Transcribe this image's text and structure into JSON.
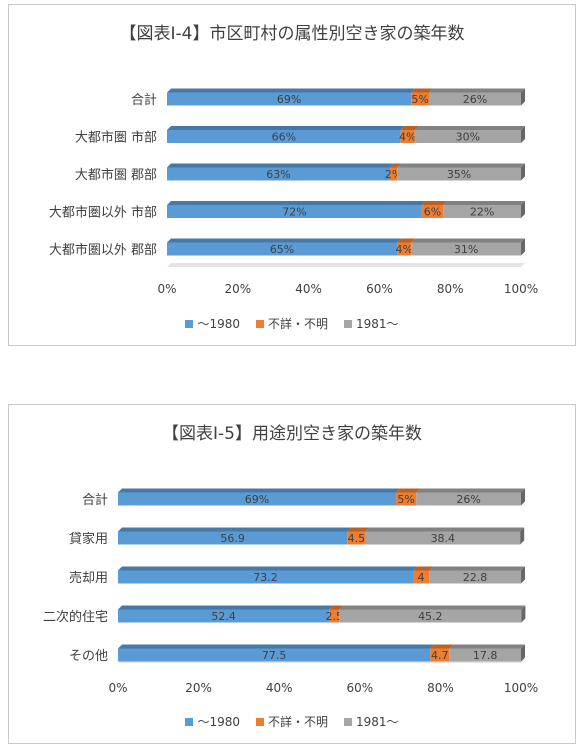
{
  "chart_data": [
    {
      "type": "bar",
      "stacked": true,
      "orientation": "horizontal",
      "title": "【図表Ⅰ-4】市区町村の属性別空き家の築年数",
      "categories": [
        "合計",
        "大都市圏 市部",
        "大都市圏 郡部",
        "大都市圏以外 市部",
        "大都市圏以外 郡部"
      ],
      "series": [
        {
          "name": "～1980",
          "color": "#5B9BD5",
          "values": [
            69,
            66,
            63,
            72,
            65
          ],
          "labels": [
            "69%",
            "66%",
            "63%",
            "72%",
            "65%"
          ]
        },
        {
          "name": "不詳・不明",
          "color": "#ED7D31",
          "values": [
            5,
            4,
            2,
            6,
            4
          ],
          "labels": [
            "5%",
            "4%",
            "2%",
            "6%",
            "4%"
          ]
        },
        {
          "name": "1981～",
          "color": "#A5A5A5",
          "values": [
            26,
            30,
            35,
            22,
            31
          ],
          "labels": [
            "26%",
            "30%",
            "35%",
            "22%",
            "31%"
          ]
        }
      ],
      "xlim": [
        0,
        100
      ],
      "xticks": [
        "0%",
        "20%",
        "40%",
        "60%",
        "80%",
        "100%"
      ],
      "legend_position": "bottom",
      "grid": false
    },
    {
      "type": "bar",
      "stacked": true,
      "orientation": "horizontal",
      "title": "【図表Ⅰ-5】用途別空き家の築年数",
      "categories": [
        "合計",
        "貸家用",
        "売却用",
        "二次的住宅",
        "その他"
      ],
      "series": [
        {
          "name": "～1980",
          "color": "#5B9BD5",
          "values": [
            69,
            56.9,
            73.2,
            52.4,
            77.5
          ],
          "labels": [
            "69%",
            "56.9",
            "73.2",
            "52.4",
            "77.5"
          ]
        },
        {
          "name": "不詳・不明",
          "color": "#ED7D31",
          "values": [
            5,
            4.5,
            4,
            2.5,
            4.7
          ],
          "labels": [
            "5%",
            "4.5",
            "4",
            "2.5",
            "4.7"
          ]
        },
        {
          "name": "1981～",
          "color": "#A5A5A5",
          "values": [
            26,
            38.4,
            22.8,
            45.2,
            17.8
          ],
          "labels": [
            "26%",
            "38.4",
            "22.8",
            "45.2",
            "17.8"
          ]
        }
      ],
      "xlim": [
        0,
        100
      ],
      "xticks": [
        "0%",
        "20%",
        "40%",
        "60%",
        "80%",
        "100%"
      ],
      "legend_position": "bottom",
      "grid": false
    }
  ]
}
